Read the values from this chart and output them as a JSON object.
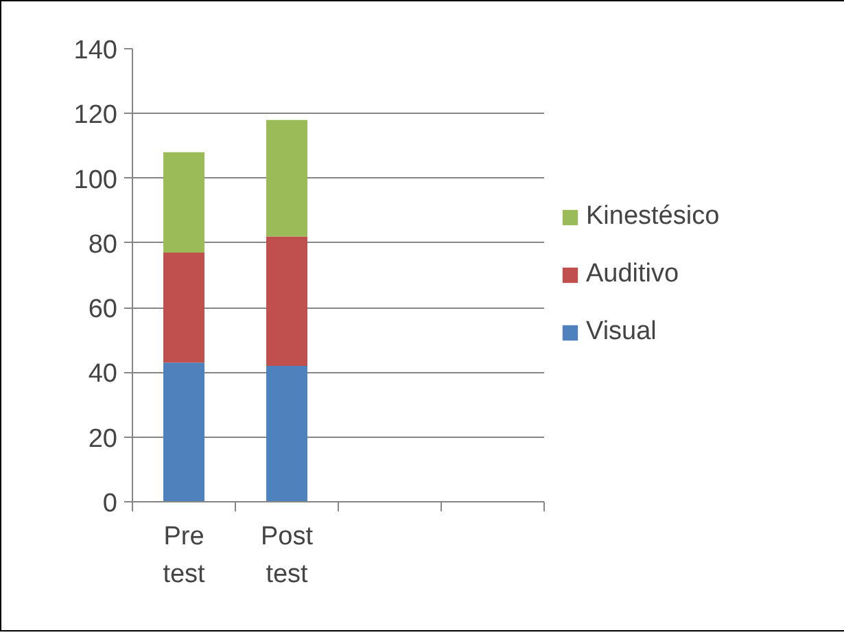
{
  "chart_data": {
    "type": "bar",
    "stacked": true,
    "categories": [
      "Pre test",
      "Post test",
      null,
      null
    ],
    "series": [
      {
        "name": "Visual",
        "color": "#4f81bd",
        "values": [
          43,
          42,
          null,
          null
        ]
      },
      {
        "name": "Auditivo",
        "color": "#c0504d",
        "values": [
          34,
          40,
          null,
          null
        ]
      },
      {
        "name": "Kinestésico",
        "color": "#9bbb59",
        "values": [
          31,
          36,
          null,
          null
        ]
      }
    ],
    "ylim": [
      0,
      140
    ],
    "yticks": [
      0,
      20,
      40,
      60,
      80,
      100,
      120,
      140
    ],
    "grid": "y",
    "legend": "right"
  }
}
